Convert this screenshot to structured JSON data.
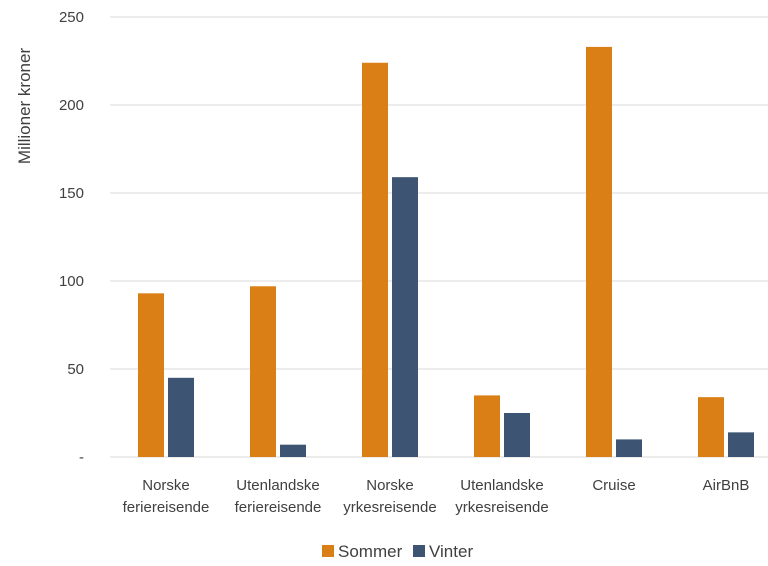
{
  "chart_data": {
    "type": "bar",
    "title": "",
    "xlabel": "",
    "ylabel": "Millioner kroner",
    "ylim": [
      0,
      250
    ],
    "yticks": [
      0,
      50,
      100,
      150,
      200,
      250
    ],
    "ytick_labels": [
      "-",
      "50",
      "100",
      "150",
      "200",
      "250"
    ],
    "grid": true,
    "legend_position": "bottom",
    "categories": [
      [
        "Norske",
        "feriereisende"
      ],
      [
        "Utenlandske",
        "feriereisende"
      ],
      [
        "Norske",
        "yrkesreisende"
      ],
      [
        "Utenlandske",
        "yrkesreisende"
      ],
      [
        "Cruise"
      ],
      [
        "AirBnB"
      ]
    ],
    "series": [
      {
        "name": "Sommer",
        "color": "#D97F16",
        "values": [
          93,
          97,
          224,
          35,
          233,
          34
        ]
      },
      {
        "name": "Vinter",
        "color": "#3D5573",
        "values": [
          45,
          7,
          159,
          25,
          10,
          14
        ]
      }
    ]
  }
}
